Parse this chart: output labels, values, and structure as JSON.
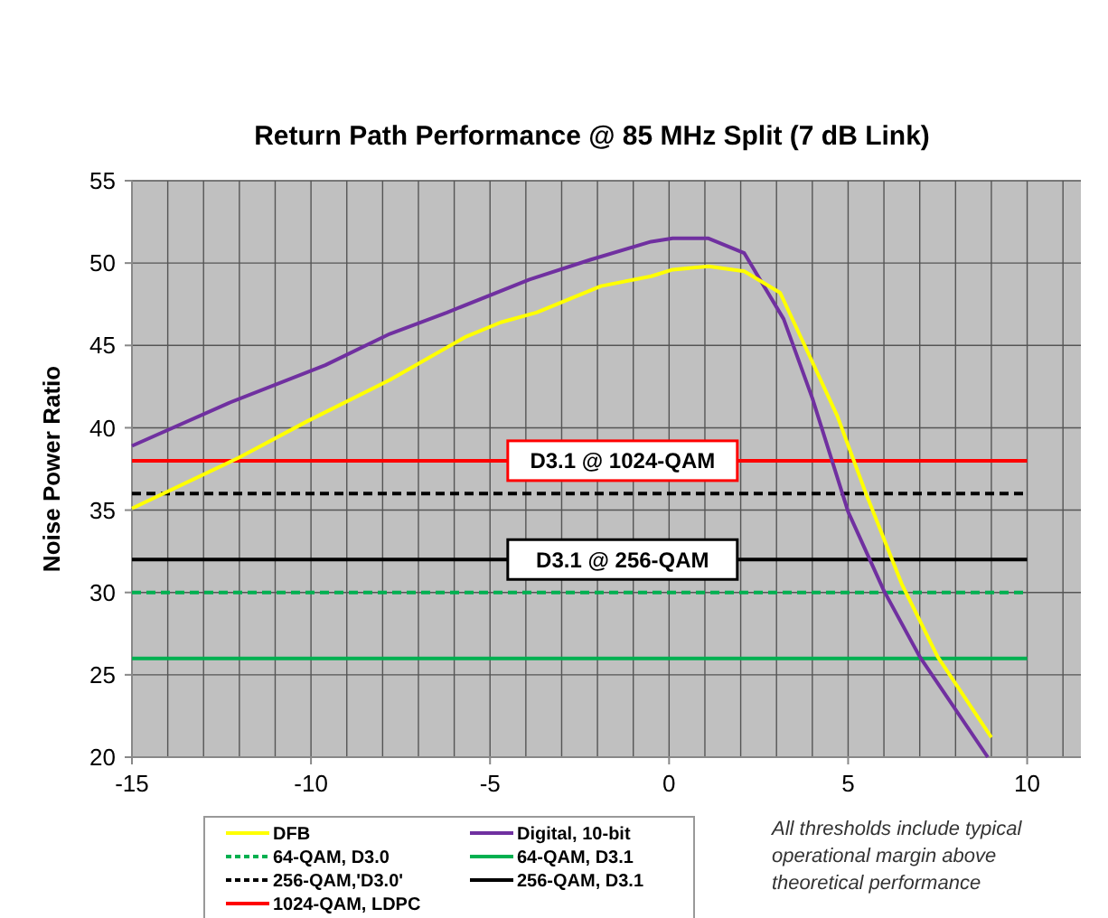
{
  "chart_data": {
    "type": "line",
    "title": "Return Path Performance @ 85 MHz Split  (7 dB Link)",
    "ylabel": "Noise Power Ratio",
    "xlim": [
      -15,
      11.5
    ],
    "xticks": [
      -15,
      -10,
      -5,
      0,
      5,
      10
    ],
    "ylim": [
      20,
      55
    ],
    "yticks": [
      20,
      25,
      30,
      35,
      40,
      45,
      50,
      55
    ],
    "grid": true,
    "legend": "bottom",
    "marker": "none",
    "series": [
      {
        "name": "DFB",
        "color": "#ffff00",
        "x": [
          -15,
          -12,
          -10.1,
          -7.8,
          -5.7,
          -4.7,
          -3.7,
          -1.9,
          -0.5,
          0.1,
          1.1,
          2.1,
          3.1,
          4,
          4.7,
          5.5,
          6.5,
          7.5,
          9
        ],
        "values": [
          35.1,
          38.2,
          40.4,
          42.9,
          45.5,
          46.4,
          47,
          48.6,
          49.2,
          49.6,
          49.8,
          49.5,
          48.2,
          44,
          40.7,
          36,
          30.5,
          26.1,
          21.2
        ]
      },
      {
        "name": "Digital, 10-bit",
        "color": "#7030a0",
        "x": [
          -15,
          -12.3,
          -9.6,
          -7.8,
          -6.2,
          -3.9,
          -2.2,
          -0.5,
          0.1,
          1.1,
          2.1,
          3.2,
          4,
          5,
          6,
          7,
          8.9
        ],
        "values": [
          38.9,
          41.5,
          43.8,
          45.7,
          47,
          49,
          50.2,
          51.3,
          51.5,
          51.5,
          50.6,
          46.6,
          41.8,
          34.9,
          30.1,
          26.1,
          20
        ]
      },
      {
        "name": "64-QAM, D3.0",
        "color": "#00b050",
        "line_style": "dashed",
        "x": [
          -15,
          10
        ],
        "values": [
          30,
          30
        ]
      },
      {
        "name": "64-QAM, D3.1",
        "color": "#00b050",
        "line_style": "solid",
        "x": [
          -15,
          10
        ],
        "values": [
          26,
          26
        ]
      },
      {
        "name": "256-QAM,'D3.0'",
        "color": "#000000",
        "line_style": "dashed",
        "x": [
          -15,
          10
        ],
        "values": [
          36,
          36
        ]
      },
      {
        "name": "256-QAM, D3.1",
        "color": "#000000",
        "line_style": "solid",
        "x": [
          -15,
          10
        ],
        "values": [
          32,
          32
        ]
      },
      {
        "name": "1024-QAM, LDPC",
        "color": "#ff0000",
        "line_style": "solid",
        "x": [
          -15,
          10
        ],
        "values": [
          38,
          38
        ]
      }
    ],
    "annotations": [
      {
        "text": "D3.1 @ 1024-QAM",
        "x": -1.3,
        "y": 38
      },
      {
        "text": "D3.1 @ 256-QAM",
        "x": -1.3,
        "y": 32
      },
      "All thresholds include typical operational margin above theoretical performance"
    ]
  }
}
